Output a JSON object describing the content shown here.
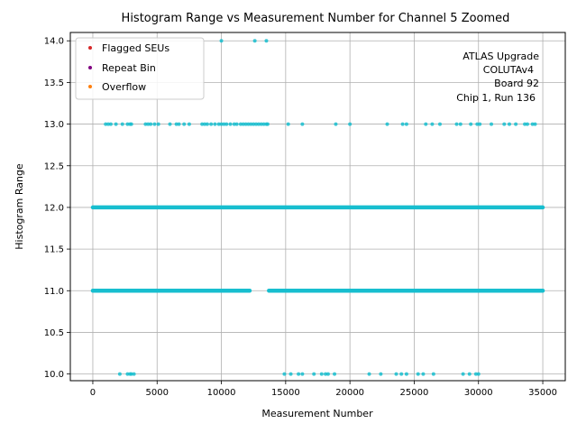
{
  "chart_data": {
    "type": "scatter",
    "title": "Histogram Range vs Measurement Number for Channel 5 Zoomed",
    "xlabel": "Measurement Number",
    "ylabel": "Histogram Range",
    "xlim": [
      -1750,
      36750
    ],
    "ylim": [
      9.92,
      14.1
    ],
    "xticks": [
      0,
      5000,
      10000,
      15000,
      20000,
      25000,
      30000,
      35000
    ],
    "xtick_labels": [
      "0",
      "5000",
      "10000",
      "15000",
      "20000",
      "25000",
      "30000",
      "35000"
    ],
    "yticks": [
      10.0,
      10.5,
      11.0,
      11.5,
      12.0,
      12.5,
      13.0,
      13.5,
      14.0
    ],
    "ytick_labels": [
      "10.0",
      "10.5",
      "11.0",
      "11.5",
      "12.0",
      "12.5",
      "13.0",
      "13.5",
      "14.0"
    ],
    "grid": true,
    "legend_position": "top-left",
    "annotation_lines": [
      "ATLAS Upgrade",
      "COLUTAv4",
      "Board 92",
      "Chip 1, Run 136"
    ],
    "series": [
      {
        "name": "Flagged SEUs",
        "color": "#d62728",
        "x": [],
        "y": []
      },
      {
        "name": "Repeat Bin",
        "color": "#800080",
        "x": [],
        "y": []
      },
      {
        "name": "Overflow",
        "color": "#ff7f0e",
        "x": [],
        "y": []
      },
      {
        "name": "",
        "color": "#17becf",
        "x": [
          10000,
          12600,
          13500,
          1000,
          1200,
          1400,
          1800,
          2300,
          2700,
          2900,
          3000,
          4100,
          4300,
          4500,
          4800,
          5100,
          6000,
          6500,
          6700,
          7100,
          7500,
          8500,
          8700,
          8900,
          9200,
          9500,
          9800,
          10000,
          10200,
          10400,
          10700,
          11000,
          11200,
          11500,
          11700,
          11900,
          12100,
          12300,
          12500,
          12700,
          12900,
          13100,
          13300,
          13500,
          13600,
          15200,
          16300,
          18900,
          20000,
          22900,
          24100,
          24400,
          25900,
          26400,
          27000,
          28300,
          28600,
          29400,
          29900,
          30100,
          31000,
          32000,
          32400,
          32900,
          33600,
          33800,
          34200,
          34400,
          2100,
          2700,
          2900,
          3000,
          3200,
          14900,
          15400,
          16000,
          16300,
          17200,
          17800,
          18100,
          18300,
          18800,
          21500,
          22400,
          23600,
          24000,
          24400,
          25300,
          25700,
          26500,
          28800,
          29300,
          29800,
          30000
        ],
        "y": [
          14,
          14,
          14,
          13,
          13,
          13,
          13,
          13,
          13,
          13,
          13,
          13,
          13,
          13,
          13,
          13,
          13,
          13,
          13,
          13,
          13,
          13,
          13,
          13,
          13,
          13,
          13,
          13,
          13,
          13,
          13,
          13,
          13,
          13,
          13,
          13,
          13,
          13,
          13,
          13,
          13,
          13,
          13,
          13,
          13,
          13,
          13,
          13,
          13,
          13,
          13,
          13,
          13,
          13,
          13,
          13,
          13,
          13,
          13,
          13,
          13,
          13,
          13,
          13,
          13,
          13,
          13,
          13,
          10,
          10,
          10,
          10,
          10,
          10,
          10,
          10,
          10,
          10,
          10,
          10,
          10,
          10,
          10,
          10,
          10,
          10,
          10,
          10,
          10,
          10,
          10,
          10,
          10,
          10
        ],
        "bands": [
          {
            "y": 12,
            "x_start": 0,
            "x_end": 35000
          },
          {
            "y": 11,
            "x_start": 0,
            "x_end": 12200
          },
          {
            "y": 11,
            "x_start": 13700,
            "x_end": 35000
          }
        ]
      }
    ]
  }
}
